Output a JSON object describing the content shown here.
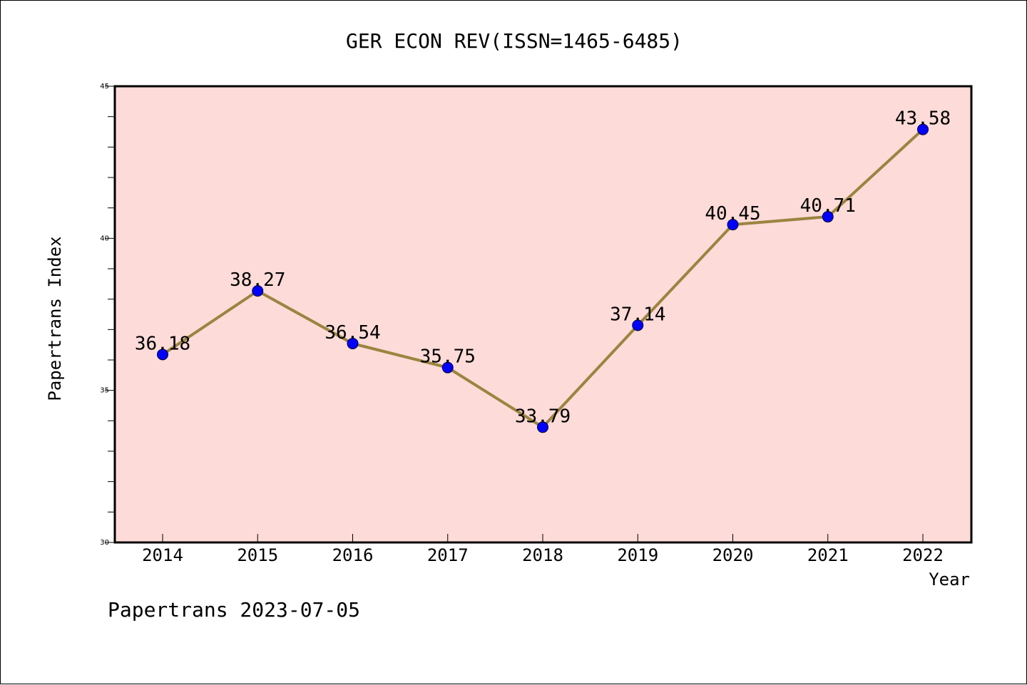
{
  "chart_data": {
    "type": "line",
    "title": "GER ECON REV(ISSN=1465-6485)",
    "xlabel": "Year",
    "ylabel": "Papertrans Index",
    "categories": [
      "2014",
      "2015",
      "2016",
      "2017",
      "2018",
      "2019",
      "2020",
      "2021",
      "2022"
    ],
    "series": [
      {
        "values": [
          36.18,
          38.27,
          36.54,
          35.75,
          33.79,
          37.14,
          40.45,
          40.71,
          43.58
        ],
        "labels": [
          "36.18",
          "38.27",
          "36.54",
          "35.75",
          "33.79",
          "37.14",
          "40.45",
          "40.71",
          "43.58"
        ]
      }
    ],
    "ylim": [
      30,
      45
    ],
    "yticks": [
      "30",
      "35",
      "40",
      "45"
    ],
    "grid": false,
    "legend": "none"
  },
  "footer": "Papertrans 2023-07-05",
  "colors": {
    "plot_background": "#fddbd8",
    "line": "#9b8440",
    "marker": "#0000ff",
    "axis": "#000000"
  }
}
